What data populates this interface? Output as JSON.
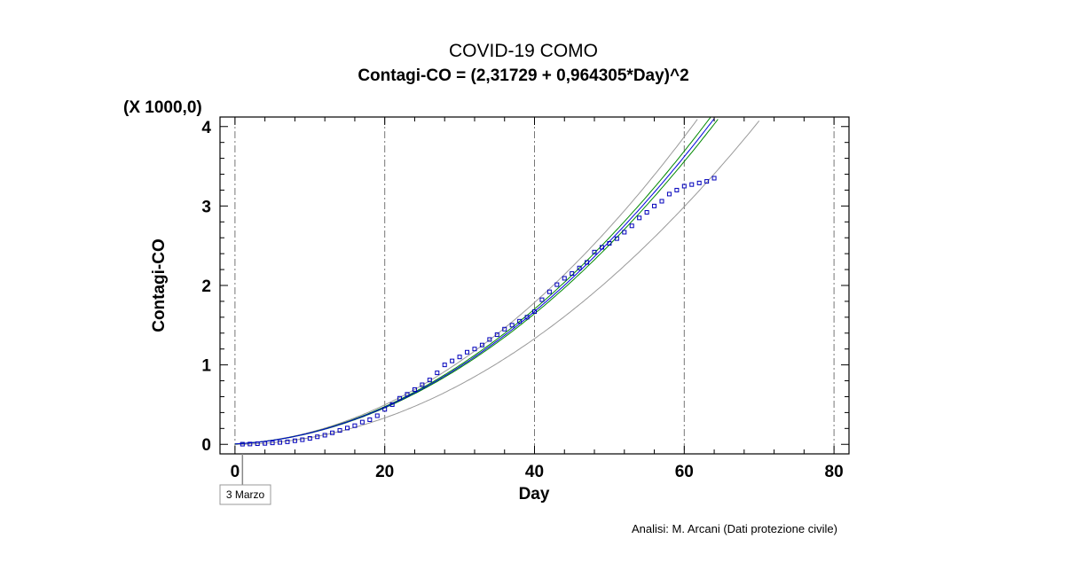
{
  "chart_data": {
    "type": "scatter",
    "title": "COVID-19 COMO",
    "subtitle": "Contagi-CO = (2,31729 + 0,964305*Day)^2",
    "xlabel": "Day",
    "ylabel": "Contagi-CO",
    "y_multiplier_label": "(X 1000,0)",
    "xlim": [
      -2,
      82
    ],
    "ylim": [
      -0.12,
      4.12
    ],
    "x_ticks": [
      0,
      20,
      40,
      60,
      80
    ],
    "x_tick_labels": [
      "0",
      "20",
      "40",
      "60",
      "80"
    ],
    "y_ticks": [
      0,
      1,
      2,
      3,
      4
    ],
    "y_tick_labels": [
      "0",
      "1",
      "2",
      "3",
      "4"
    ],
    "grid": "vertical dash-dot at x ticks",
    "annotation": {
      "text": "3 Marzo",
      "x": 1
    },
    "model": {
      "intercept": 2.31729,
      "slope": 0.964305,
      "form": "(a + b*Day)^2",
      "units": "x1000"
    },
    "series": [
      {
        "marker": "open-square",
        "color": "#0000bb",
        "x": [
          1,
          2,
          3,
          4,
          5,
          6,
          7,
          8,
          9,
          10,
          11,
          12,
          13,
          14,
          15,
          16,
          17,
          18,
          19,
          20,
          21,
          22,
          23,
          24,
          25,
          26,
          27,
          28,
          29,
          30,
          31,
          32,
          33,
          34,
          35,
          36,
          37,
          38,
          39,
          40,
          41,
          42,
          43,
          44,
          45,
          46,
          47,
          48,
          49,
          50,
          51,
          52,
          53,
          54,
          55,
          56,
          57,
          58,
          59,
          60,
          61,
          62,
          63,
          64
        ],
        "y": [
          0.002,
          0.004,
          0.008,
          0.012,
          0.018,
          0.024,
          0.032,
          0.045,
          0.058,
          0.075,
          0.095,
          0.115,
          0.145,
          0.175,
          0.205,
          0.235,
          0.28,
          0.31,
          0.36,
          0.44,
          0.5,
          0.58,
          0.63,
          0.69,
          0.75,
          0.81,
          0.9,
          1.0,
          1.05,
          1.1,
          1.16,
          1.2,
          1.25,
          1.32,
          1.38,
          1.45,
          1.5,
          1.55,
          1.6,
          1.67,
          1.82,
          1.92,
          2.01,
          2.09,
          2.15,
          2.22,
          2.29,
          2.42,
          2.48,
          2.53,
          2.59,
          2.67,
          2.75,
          2.85,
          2.92,
          3.0,
          3.06,
          3.15,
          3.2,
          3.25,
          3.27,
          3.29,
          3.31,
          3.35
        ]
      }
    ],
    "fit_line_color": "#0000dd",
    "confidence_band_color": "#008800",
    "prediction_band_color": "#999999"
  },
  "credit": "Analisi: M. Arcani (Dati protezione civile)"
}
